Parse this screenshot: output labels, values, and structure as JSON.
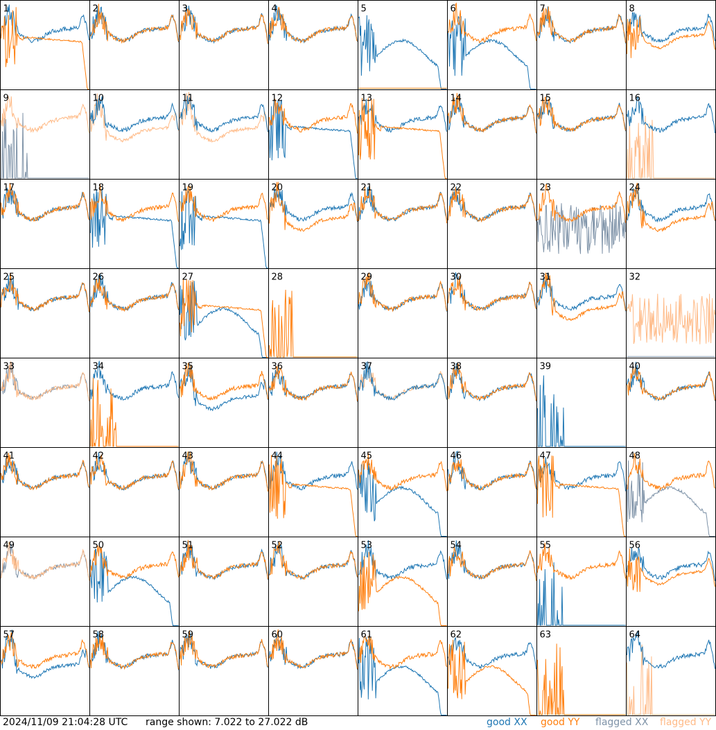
{
  "chart_data": {
    "type": "line",
    "grid_rows": 8,
    "grid_cols": 8,
    "panel_labels": [
      "1",
      "2",
      "3",
      "4",
      "5",
      "6",
      "7",
      "8",
      "9",
      "10",
      "11",
      "12",
      "13",
      "14",
      "15",
      "16",
      "17",
      "18",
      "19",
      "20",
      "21",
      "22",
      "23",
      "24",
      "25",
      "26",
      "27",
      "28",
      "29",
      "30",
      "31",
      "32",
      "33",
      "34",
      "35",
      "36",
      "37",
      "38",
      "39",
      "40",
      "41",
      "42",
      "43",
      "44",
      "45",
      "46",
      "47",
      "48",
      "49",
      "50",
      "51",
      "52",
      "53",
      "54",
      "55",
      "56",
      "57",
      "58",
      "59",
      "60",
      "61",
      "62",
      "63",
      "64"
    ],
    "yrange_db": [
      7.022,
      27.022
    ],
    "series_styles": {
      "good_xx": "#1f77b4",
      "good_yy": "#ff7f0e",
      "flagged_xx": "#7f93a8",
      "flagged_yy": "#ffbb88"
    },
    "panel_profiles": {
      "1": {
        "xx": "normal",
        "yy": "droop"
      },
      "5": {
        "xx": "dip",
        "yy": "flat0"
      },
      "6": {
        "xx": "dip",
        "yy": "normal"
      },
      "8": {
        "xx": "normal",
        "yy": "droopmild"
      },
      "9": {
        "fxx": "spikes",
        "fyy": "normal"
      },
      "10": {
        "xx": "normal",
        "fyy": "lowmid"
      },
      "11": {
        "xx": "normal",
        "fyy": "lowmid"
      },
      "12": {
        "xx": "droop",
        "yy": "normal"
      },
      "13": {
        "xx": "normal",
        "yy": "droop"
      },
      "16": {
        "xx": "normal",
        "fyy": "spikes"
      },
      "18": {
        "xx": "droop",
        "yy": "normal"
      },
      "19": {
        "xx": "droop",
        "yy": "normal"
      },
      "20": {
        "xx": "normal",
        "yy": "lowmid"
      },
      "23": {
        "fxx": "noise",
        "yy": "normal"
      },
      "24": {
        "xx": "normal",
        "yy": "lowmid"
      },
      "27": {
        "xx": "dip",
        "yy": "droop"
      },
      "28": {
        "yy": "spikes"
      },
      "31": {
        "xx": "normal",
        "yy": "lowmid"
      },
      "32": {
        "fyy": "noise",
        "fxx": "flat0"
      },
      "33": {
        "fxx": "normal",
        "fyy": "normal"
      },
      "34": {
        "xx": "normal",
        "yy": "spikes"
      },
      "35": {
        "xx": "lowmid",
        "yy": "normal"
      },
      "37": {
        "xx": "normal",
        "fyy": "normal"
      },
      "39": {
        "xx": "spikes"
      },
      "44": {
        "xx": "normal",
        "yy": "droop"
      },
      "45": {
        "xx": "dip",
        "yy": "normal"
      },
      "47": {
        "xx": "normal",
        "yy": "droop"
      },
      "48": {
        "fxx": "dip",
        "yy": "normal"
      },
      "49": {
        "fxx": "normal",
        "fyy": "normal"
      },
      "50": {
        "xx": "dip",
        "yy": "normal"
      },
      "53": {
        "xx": "normal",
        "yy": "dip"
      },
      "55": {
        "xx": "spikes",
        "yy": "normal"
      },
      "56": {
        "xx": "normal",
        "yy": "droopmild"
      },
      "57": {
        "xx": "lowmid",
        "yy": "normal"
      },
      "61": {
        "xx": "dip",
        "yy": "normal"
      },
      "62": {
        "xx": "normal",
        "yy": "dip"
      },
      "63": {
        "yy": "spikes"
      },
      "64": {
        "xx": "normal",
        "fyy": "spikes"
      }
    }
  },
  "footer": {
    "timestamp": "2024/11/09 21:04:28 UTC",
    "range_text": "range shown: 7.022 to 27.022 dB",
    "legend": {
      "good_xx": "good XX",
      "good_yy": "good YY",
      "flagged_xx": "flagged XX",
      "flagged_yy": "flagged YY"
    }
  }
}
